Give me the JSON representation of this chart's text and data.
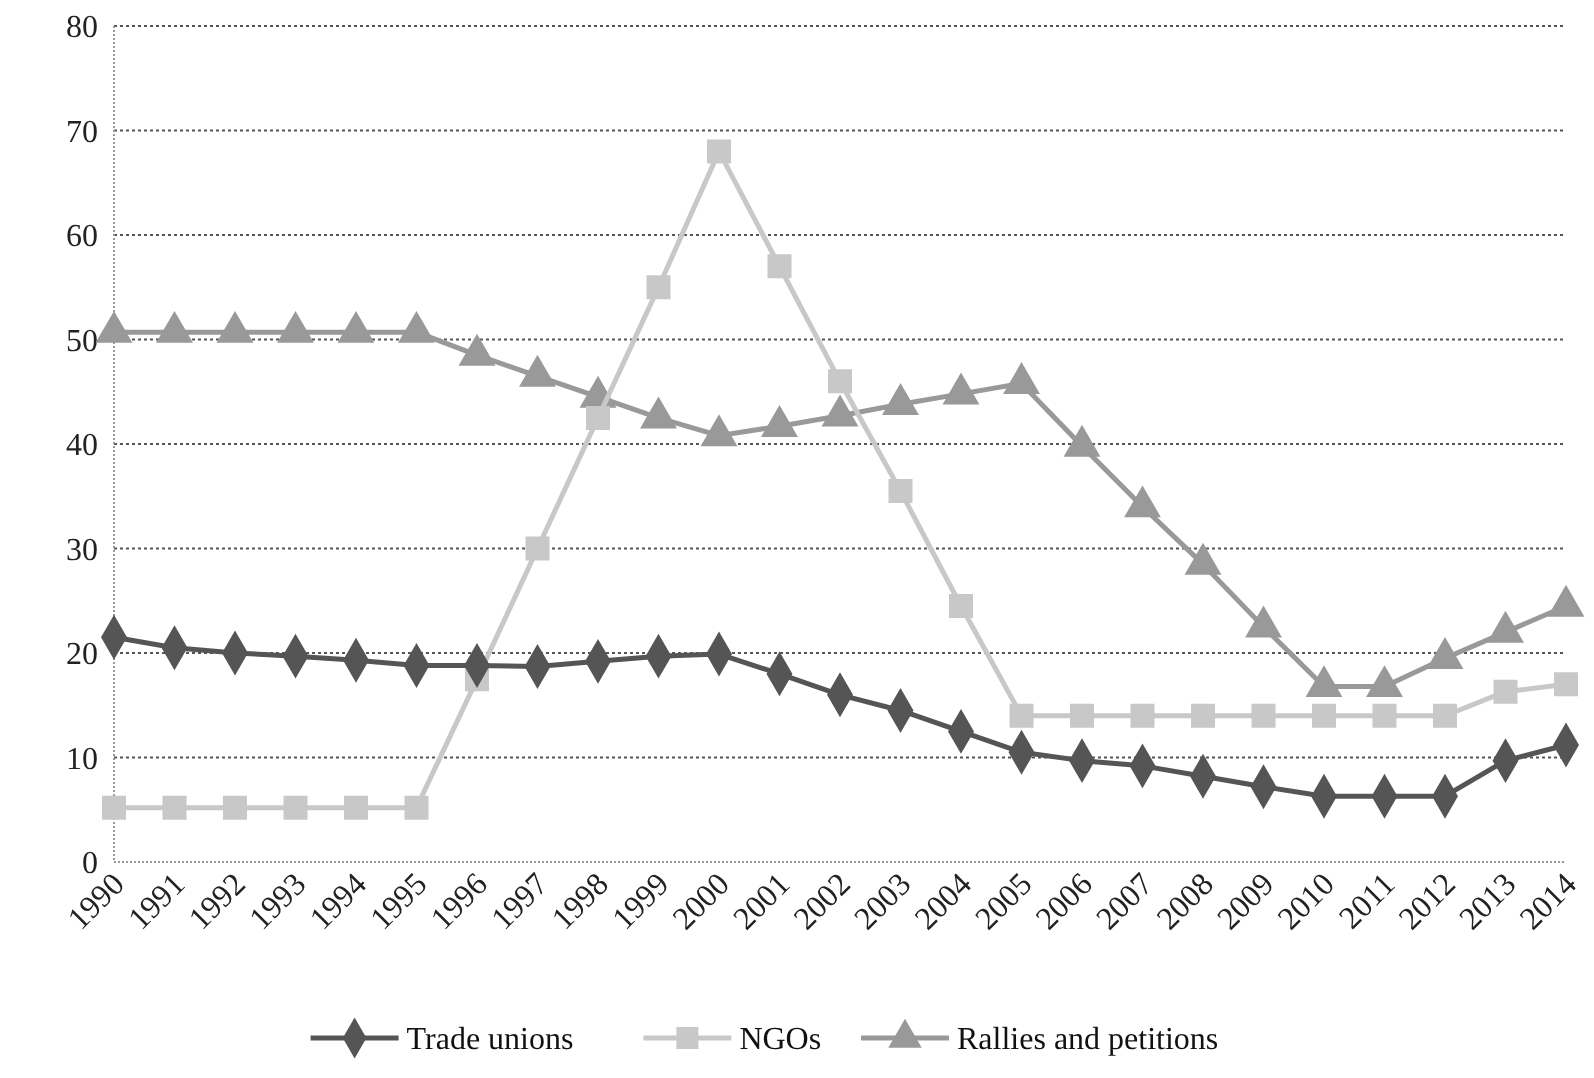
{
  "chart_data": {
    "type": "line",
    "categories": [
      "1990",
      "1991",
      "1992",
      "1993",
      "1994",
      "1995",
      "1996",
      "1997",
      "1998",
      "1999",
      "2000",
      "2001",
      "2002",
      "2003",
      "2004",
      "2005",
      "2006",
      "2007",
      "2008",
      "2009",
      "2010",
      "2011",
      "2012",
      "2013",
      "2014"
    ],
    "ylim": [
      0,
      80
    ],
    "yticks": [
      0,
      10,
      20,
      30,
      40,
      50,
      60,
      70,
      80
    ],
    "grid": "y",
    "legend": "bottom",
    "series": [
      {
        "name": "Trade unions",
        "color": "#555555",
        "marker": "diamond",
        "values": [
          21.5,
          20.5,
          20,
          19.7,
          19.3,
          18.8,
          18.8,
          18.7,
          19.2,
          19.7,
          19.9,
          18,
          16,
          14.5,
          12.5,
          10.5,
          9.7,
          9.2,
          8.2,
          7.2,
          6.3,
          6.3,
          6.3,
          9.7,
          11.2
        ]
      },
      {
        "name": "NGOs",
        "color": "#c8c8c8",
        "marker": "square",
        "values": [
          5.2,
          5.2,
          5.2,
          5.2,
          5.2,
          5.2,
          17.5,
          30,
          42.5,
          55,
          68,
          57,
          46,
          35.5,
          24.5,
          14,
          14,
          14,
          14,
          14,
          14,
          14,
          14,
          16.3,
          17
        ]
      },
      {
        "name": "Rallies and petitions",
        "color": "#999999",
        "marker": "triangle",
        "values": [
          50.7,
          50.7,
          50.7,
          50.7,
          50.7,
          50.7,
          48.5,
          46.5,
          44.5,
          42.5,
          40.8,
          41.7,
          42.7,
          43.8,
          44.8,
          45.8,
          39.8,
          34,
          28.5,
          22.5,
          16.8,
          16.8,
          19.5,
          22,
          24.5
        ]
      }
    ]
  }
}
